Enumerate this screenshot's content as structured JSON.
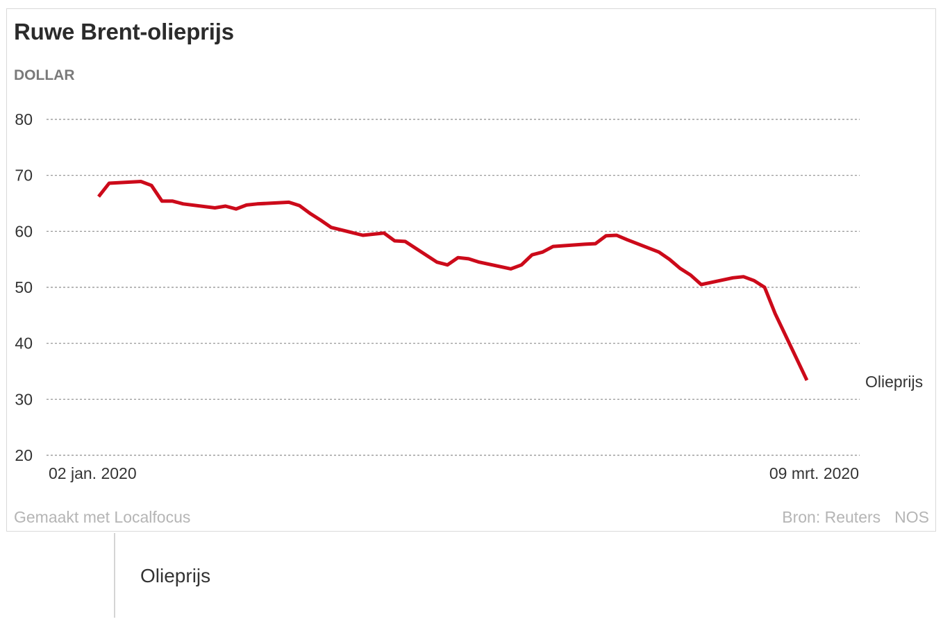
{
  "title": "Ruwe Brent-olieprijs",
  "unit": "DOLLAR",
  "footer": {
    "made_with": "Gemaakt met Localfocus",
    "source": "Bron: Reuters",
    "brand": "NOS"
  },
  "legend": {
    "series_label": "Olieprijs"
  },
  "chart_data": {
    "type": "line",
    "title": "Ruwe Brent-olieprijs",
    "ylabel": "DOLLAR",
    "ylim": [
      20,
      80
    ],
    "yticks": [
      80,
      70,
      60,
      50,
      40,
      30,
      20
    ],
    "x_range_labels": [
      "02 jan. 2020",
      "09 mrt. 2020"
    ],
    "grid": true,
    "line_color": "#cc0a1a",
    "series": [
      {
        "name": "Olieprijs",
        "x": [
          "2020-01-02",
          "2020-01-03",
          "2020-01-06",
          "2020-01-07",
          "2020-01-08",
          "2020-01-09",
          "2020-01-10",
          "2020-01-13",
          "2020-01-14",
          "2020-01-15",
          "2020-01-16",
          "2020-01-17",
          "2020-01-20",
          "2020-01-21",
          "2020-01-22",
          "2020-01-23",
          "2020-01-24",
          "2020-01-27",
          "2020-01-28",
          "2020-01-29",
          "2020-01-30",
          "2020-01-31",
          "2020-02-03",
          "2020-02-04",
          "2020-02-05",
          "2020-02-06",
          "2020-02-07",
          "2020-02-10",
          "2020-02-11",
          "2020-02-12",
          "2020-02-13",
          "2020-02-14",
          "2020-02-17",
          "2020-02-18",
          "2020-02-19",
          "2020-02-20",
          "2020-02-21",
          "2020-02-24",
          "2020-02-25",
          "2020-02-26",
          "2020-02-27",
          "2020-02-28",
          "2020-03-02",
          "2020-03-03",
          "2020-03-04",
          "2020-03-05",
          "2020-03-06",
          "2020-03-09"
        ],
        "values": [
          66.2,
          68.6,
          68.9,
          68.2,
          65.4,
          65.4,
          64.9,
          64.2,
          64.5,
          64.0,
          64.7,
          64.9,
          65.2,
          64.6,
          63.2,
          62.0,
          60.7,
          59.3,
          59.5,
          59.7,
          58.3,
          58.2,
          54.5,
          54.0,
          55.3,
          55.1,
          54.5,
          53.3,
          54.0,
          55.8,
          56.3,
          57.3,
          57.7,
          57.8,
          59.2,
          59.3,
          58.5,
          56.3,
          55.0,
          53.4,
          52.2,
          50.5,
          51.7,
          51.9,
          51.2,
          50.0,
          45.3,
          33.4
        ]
      }
    ]
  }
}
